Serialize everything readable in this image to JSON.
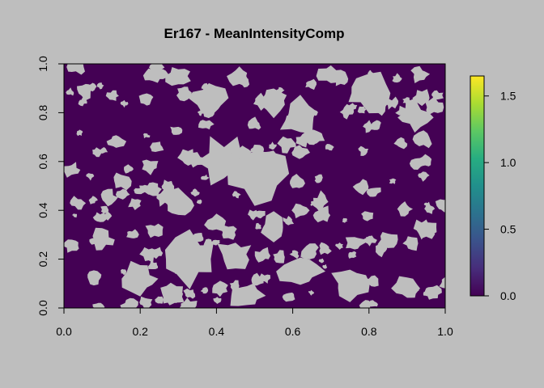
{
  "chart_data": {
    "type": "heatmap",
    "title": "Er167 - MeanIntensityComp",
    "xlabel": "",
    "ylabel": "",
    "xlim": [
      0,
      1
    ],
    "ylim": [
      0,
      1
    ],
    "x_ticks": [
      "0.0",
      "0.2",
      "0.4",
      "0.6",
      "0.8",
      "1.0"
    ],
    "y_ticks": [
      "0.0",
      "0.2",
      "0.4",
      "0.6",
      "0.8",
      "1.0"
    ],
    "colorbar": {
      "range": [
        0,
        1.65
      ],
      "ticks": [
        "0.0",
        "0.5",
        "1.0",
        "1.5"
      ],
      "colormap": "viridis"
    },
    "observed_value_approx": 0,
    "background_color": "#bebebe",
    "cell_color": "#440154",
    "grid": false,
    "legend": "right"
  }
}
